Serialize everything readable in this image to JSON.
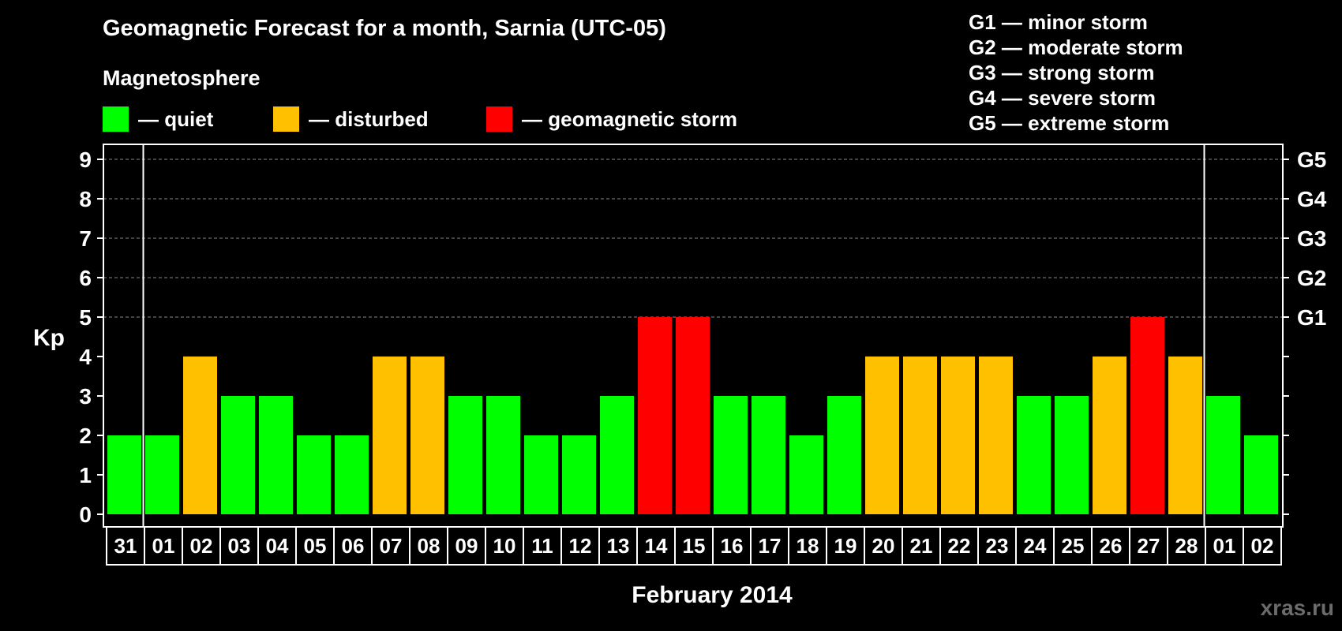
{
  "header": {
    "title": "Geomagnetic Forecast for a month, Sarnia (UTC-05)",
    "subtitle": "Magnetosphere"
  },
  "legend": [
    {
      "label": "— quiet",
      "color": "#00ff00"
    },
    {
      "label": "— disturbed",
      "color": "#ffc000"
    },
    {
      "label": "— geomagnetic storm",
      "color": "#ff0000"
    }
  ],
  "storm_scale": [
    "G1 — minor storm",
    "G2 — moderate storm",
    "G3 — strong storm",
    "G4 — severe storm",
    "G5 — extreme storm"
  ],
  "watermark": "xras.ru",
  "colors": {
    "quiet": "#00ff00",
    "disturbed": "#ffc000",
    "storm": "#ff0000",
    "grid": "#888888",
    "frame": "#ffffff"
  },
  "chart_data": {
    "type": "bar",
    "xlabel": "February 2014",
    "ylabel": "Kp",
    "ylim": [
      0,
      9
    ],
    "yticks": [
      "0",
      "1",
      "2",
      "3",
      "4",
      "5",
      "6",
      "7",
      "8",
      "9"
    ],
    "right_ticks": [
      {
        "kp": 5,
        "label": "G1"
      },
      {
        "kp": 6,
        "label": "G2"
      },
      {
        "kp": 7,
        "label": "G3"
      },
      {
        "kp": 8,
        "label": "G4"
      },
      {
        "kp": 9,
        "label": "G5"
      }
    ],
    "categories": [
      "31",
      "01",
      "02",
      "03",
      "04",
      "05",
      "06",
      "07",
      "08",
      "09",
      "10",
      "11",
      "12",
      "13",
      "14",
      "15",
      "16",
      "17",
      "18",
      "19",
      "20",
      "21",
      "22",
      "23",
      "24",
      "25",
      "26",
      "27",
      "28",
      "01",
      "02"
    ],
    "values": [
      2,
      2,
      4,
      3,
      3,
      2,
      2,
      4,
      4,
      3,
      3,
      2,
      2,
      3,
      5,
      5,
      3,
      3,
      2,
      3,
      4,
      4,
      4,
      4,
      3,
      3,
      4,
      5,
      4,
      3,
      2
    ],
    "status": [
      "quiet",
      "quiet",
      "disturbed",
      "quiet",
      "quiet",
      "quiet",
      "quiet",
      "disturbed",
      "disturbed",
      "quiet",
      "quiet",
      "quiet",
      "quiet",
      "quiet",
      "storm",
      "storm",
      "quiet",
      "quiet",
      "quiet",
      "quiet",
      "disturbed",
      "disturbed",
      "disturbed",
      "disturbed",
      "quiet",
      "quiet",
      "disturbed",
      "storm",
      "disturbed",
      "quiet",
      "quiet"
    ],
    "month_boundaries_after_index": [
      0,
      28
    ]
  }
}
